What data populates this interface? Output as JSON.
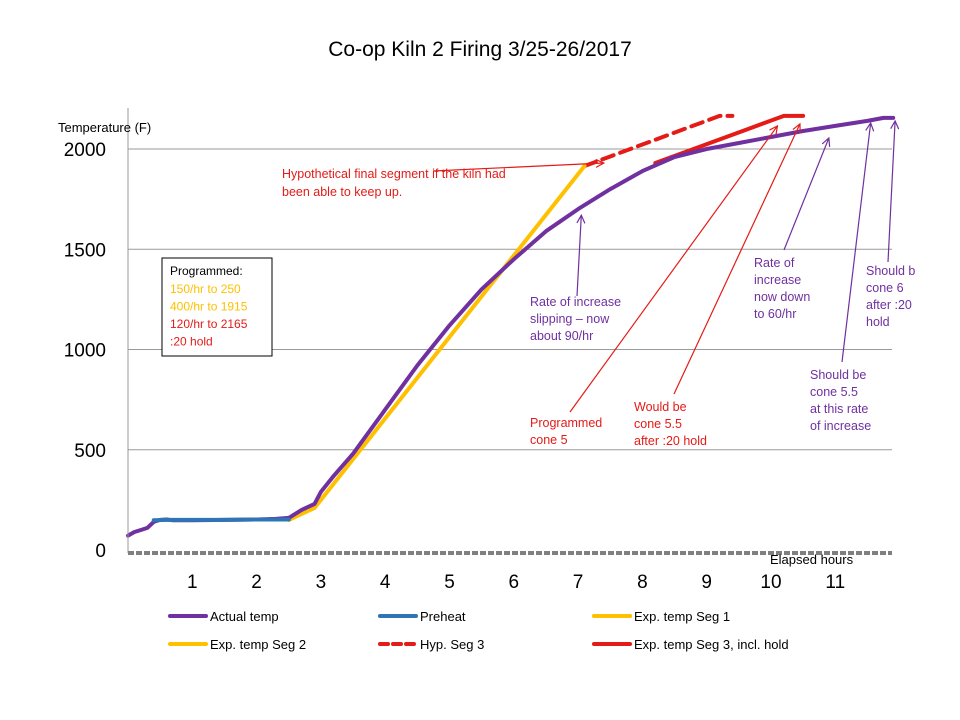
{
  "chart_data": {
    "type": "line",
    "title": "Co-op Kiln 2 Firing 3/25-26/2017",
    "ylabel": "Temperature  (F)",
    "xlabel": "Elapsed hours",
    "xlim": [
      0,
      11.95
    ],
    "ylim": [
      0,
      2200
    ],
    "y_ticks": [
      0,
      500,
      1000,
      1500,
      2000
    ],
    "x_ticks": [
      1,
      2,
      3,
      4,
      5,
      6,
      7,
      8,
      9,
      10,
      11
    ],
    "grid": "horizontal",
    "legend_position": "bottom",
    "series": [
      {
        "name": "Actual temp",
        "color": "#7030A0",
        "dash": "solid",
        "points": [
          [
            0,
            72
          ],
          [
            0.1,
            90
          ],
          [
            0.2,
            100
          ],
          [
            0.3,
            110
          ],
          [
            0.4,
            140
          ],
          [
            0.5,
            150
          ],
          [
            0.6,
            152
          ],
          [
            0.7,
            148
          ],
          [
            1.0,
            148
          ],
          [
            1.5,
            150
          ],
          [
            2.0,
            152
          ],
          [
            2.3,
            155
          ],
          [
            2.5,
            160
          ],
          [
            2.7,
            200
          ],
          [
            2.9,
            230
          ],
          [
            3.0,
            290
          ],
          [
            3.2,
            370
          ],
          [
            3.5,
            480
          ],
          [
            4.0,
            700
          ],
          [
            4.5,
            920
          ],
          [
            5.0,
            1120
          ],
          [
            5.5,
            1300
          ],
          [
            6.0,
            1450
          ],
          [
            6.5,
            1590
          ],
          [
            7.0,
            1700
          ],
          [
            7.5,
            1800
          ],
          [
            8.0,
            1890
          ],
          [
            8.5,
            1960
          ],
          [
            9.0,
            2000
          ],
          [
            9.5,
            2030
          ],
          [
            10.0,
            2060
          ],
          [
            10.5,
            2090
          ],
          [
            11.0,
            2115
          ],
          [
            11.5,
            2140
          ],
          [
            11.75,
            2155
          ],
          [
            11.9,
            2155
          ]
        ]
      },
      {
        "name": "Preheat",
        "color": "#2E75B6",
        "dash": "solid",
        "points": [
          [
            0.4,
            148
          ],
          [
            0.6,
            150
          ],
          [
            1.0,
            150
          ],
          [
            1.5,
            150
          ],
          [
            2.0,
            152
          ],
          [
            2.5,
            152
          ]
        ]
      },
      {
        "name": "Exp. temp Seg 1",
        "color": "#FFC000",
        "dash": "solid",
        "points": [
          [
            2.5,
            150
          ],
          [
            2.9,
            210
          ],
          [
            3.0,
            250
          ]
        ]
      },
      {
        "name": "Exp. temp Seg 2",
        "color": "#FFC000",
        "dash": "solid",
        "points": [
          [
            3.0,
            250
          ],
          [
            7.1,
            1915
          ]
        ]
      },
      {
        "name": "Hyp. Seg 3",
        "color": "#E41B17",
        "dash": "dashed",
        "points": [
          [
            7.1,
            1915
          ],
          [
            9.2,
            2165
          ],
          [
            9.4,
            2165
          ]
        ]
      },
      {
        "name": "Exp. temp Seg 3, incl. hold",
        "color": "#E41B17",
        "dash": "solid",
        "points": [
          [
            8.2,
            1930
          ],
          [
            10.2,
            2165
          ],
          [
            10.5,
            2165
          ]
        ]
      }
    ],
    "annotations": [
      {
        "text": [
          "Hypothetical final segment if the kiln had",
          "been able to keep up."
        ],
        "color": "#E41B17",
        "arrow_to": [
          7.4,
          1930
        ]
      },
      {
        "text": [
          "Rate of increase",
          "slipping – now",
          "about 90/hr"
        ],
        "color": "#7030A0",
        "arrow_to": [
          7.05,
          1670
        ]
      },
      {
        "text": [
          "Programmed",
          "cone 5"
        ],
        "color": "#E41B17",
        "arrow_to": [
          10.1,
          2115
        ]
      },
      {
        "text": [
          "Would be",
          "cone 5.5",
          "after :20 hold"
        ],
        "color": "#E41B17",
        "arrow_to": [
          10.45,
          2125
        ]
      },
      {
        "text": [
          "Rate of",
          "increase",
          "now down",
          "to 60/hr"
        ],
        "color": "#7030A0",
        "arrow_to": [
          10.9,
          2055
        ]
      },
      {
        "text": [
          "Should be",
          "cone 5.5",
          "at this rate",
          "of increase"
        ],
        "color": "#7030A0",
        "arrow_to": [
          11.55,
          2130
        ]
      },
      {
        "text": [
          "Should b",
          "cone 6",
          "after :20",
          "hold"
        ],
        "color": "#7030A0",
        "arrow_to": [
          11.93,
          2140
        ]
      }
    ],
    "program_box": {
      "heading": "Programmed:",
      "lines": [
        {
          "text": "150/hr to 250",
          "color": "#FFC000"
        },
        {
          "text": "400/hr to 1915",
          "color": "#FFC000"
        },
        {
          "text": "120/hr to 2165",
          "color": "#E41B17"
        },
        {
          "text": ":20 hold",
          "color": "#E41B17"
        }
      ]
    }
  }
}
